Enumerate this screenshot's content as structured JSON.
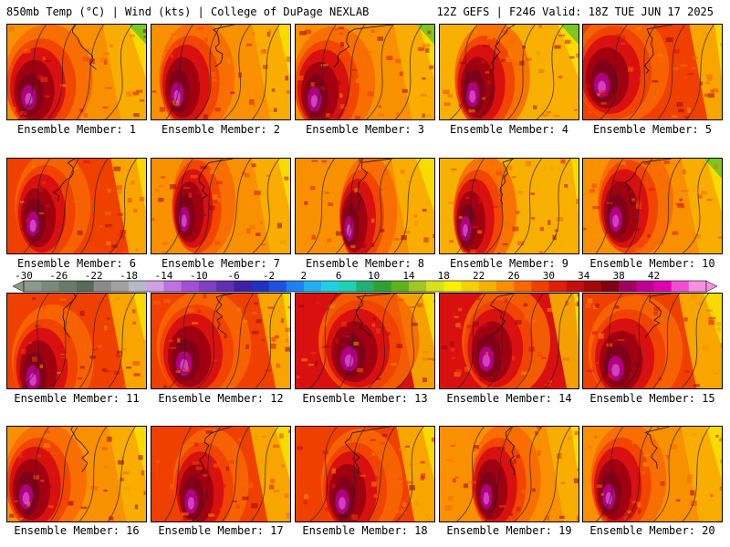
{
  "header": {
    "left": "850mb Temp (°C) | Wind (kts) | College of DuPage NEXLAB",
    "right": "12Z GEFS | F246 Valid: 18Z TUE JUN 17 2025"
  },
  "members": [
    "Ensemble Member: 1",
    "Ensemble Member: 2",
    "Ensemble Member: 3",
    "Ensemble Member: 4",
    "Ensemble Member: 5",
    "Ensemble Member: 6",
    "Ensemble Member: 7",
    "Ensemble Member: 8",
    "Ensemble Member: 9",
    "Ensemble Member: 10",
    "Ensemble Member: 11",
    "Ensemble Member: 12",
    "Ensemble Member: 13",
    "Ensemble Member: 14",
    "Ensemble Member: 15",
    "Ensemble Member: 16",
    "Ensemble Member: 17",
    "Ensemble Member: 18",
    "Ensemble Member: 19",
    "Ensemble Member: 20"
  ],
  "colorbar": {
    "tick_labels": [
      "-30",
      "-26",
      "-22",
      "-18",
      "-14",
      "-10",
      "-6",
      "-2",
      "2",
      "6",
      "10",
      "14",
      "18",
      "22",
      "26",
      "30",
      "34",
      "38",
      "42"
    ],
    "bins_from": -30,
    "bins_to": 42,
    "bin_width": 2,
    "colors": [
      "#8a9a8a",
      "#7a8a7a",
      "#6a7a6a",
      "#5a6a5a",
      "#8a8a8a",
      "#a0a0a0",
      "#b8b8c8",
      "#d0a0e0",
      "#c070e0",
      "#a050d0",
      "#8040c0",
      "#6030b0",
      "#4020a0",
      "#2030c0",
      "#2050e0",
      "#2080f0",
      "#20b0f0",
      "#20d0e0",
      "#20d0b0",
      "#20b070",
      "#30a030",
      "#60b020",
      "#a0c820",
      "#d8e020",
      "#f8f000",
      "#f8d000",
      "#f8b000",
      "#f89000",
      "#f86800",
      "#f04000",
      "#e02000",
      "#c01010",
      "#a00808",
      "#800010",
      "#a00060",
      "#c00090",
      "#e000b0",
      "#f050d0",
      "#f890e0"
    ]
  },
  "panel_colors": {
    "green": "#7cc820",
    "yellow": "#f8e000",
    "light_orange": "#f8b000",
    "orange": "#f89000",
    "dark_orange": "#f86800",
    "red_orange": "#f04000",
    "red": "#d81010",
    "dark_red": "#a00010",
    "maroon": "#800018",
    "magenta": "#b00080",
    "violet": "#d040c0"
  },
  "panel_fields": [
    {
      "base": "orange",
      "warm": [
        0.22,
        0.58,
        0.7
      ],
      "tilt": 0.1
    },
    {
      "base": "orange",
      "warm": [
        0.25,
        0.55,
        0.6
      ],
      "tilt": 0.2
    },
    {
      "base": "orange",
      "warm": [
        0.2,
        0.6,
        0.65
      ],
      "tilt": 0.15
    },
    {
      "base": "light_orange",
      "warm": [
        0.3,
        0.55,
        0.6
      ],
      "tilt": 0.05
    },
    {
      "base": "red_orange",
      "warm": [
        0.2,
        0.45,
        0.75
      ],
      "tilt": 0.3
    },
    {
      "base": "red_orange",
      "warm": [
        0.25,
        0.5,
        0.6
      ],
      "tilt": 0.25
    },
    {
      "base": "orange",
      "warm": [
        0.3,
        0.45,
        0.5
      ],
      "tilt": 0.2
    },
    {
      "base": "orange",
      "warm": [
        0.45,
        0.55,
        0.45
      ],
      "tilt": 0.1
    },
    {
      "base": "light_orange",
      "warm": [
        0.25,
        0.55,
        0.5
      ],
      "tilt": 0.3
    },
    {
      "base": "orange",
      "warm": [
        0.3,
        0.45,
        0.6
      ],
      "tilt": 0.15
    },
    {
      "base": "red_orange",
      "warm": [
        0.25,
        0.7,
        0.65
      ],
      "tilt": 0.2
    },
    {
      "base": "red_orange",
      "warm": [
        0.3,
        0.55,
        0.75
      ],
      "tilt": 0.3
    },
    {
      "base": "red",
      "warm": [
        0.45,
        0.5,
        0.8
      ],
      "tilt": 0.2
    },
    {
      "base": "red",
      "warm": [
        0.4,
        0.5,
        0.7
      ],
      "tilt": 0.35
    },
    {
      "base": "red_orange",
      "warm": [
        0.3,
        0.6,
        0.75
      ],
      "tilt": 0.1
    },
    {
      "base": "orange",
      "warm": [
        0.2,
        0.55,
        0.65
      ],
      "tilt": 0.2
    },
    {
      "base": "red_orange",
      "warm": [
        0.35,
        0.6,
        0.6
      ],
      "tilt": 0.15
    },
    {
      "base": "red_orange",
      "warm": [
        0.4,
        0.6,
        0.65
      ],
      "tilt": 0.2
    },
    {
      "base": "orange",
      "warm": [
        0.4,
        0.55,
        0.55
      ],
      "tilt": 0.3
    },
    {
      "base": "orange",
      "warm": [
        0.25,
        0.55,
        0.6
      ],
      "tilt": 0.15
    }
  ]
}
